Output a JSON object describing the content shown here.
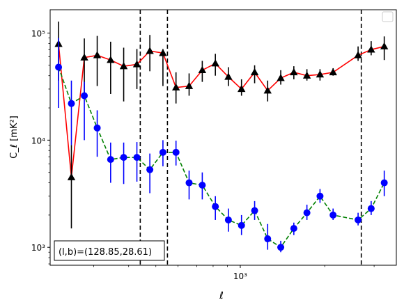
{
  "chart_data": {
    "type": "scatter",
    "xscale": "log",
    "yscale": "log",
    "xlim": [
      210,
      3600
    ],
    "ylim": [
      680,
      165000
    ],
    "xlabel": "ℓ",
    "ylabel": "C_ℓ [mK²]",
    "x_ticks": [
      {
        "value": 1000,
        "label": "10³"
      }
    ],
    "y_ticks": [
      {
        "value": 1000,
        "label": "10³"
      },
      {
        "value": 10000,
        "label": "10⁴"
      },
      {
        "value": 100000,
        "label": "10⁵"
      }
    ],
    "legend": {
      "position": "upper right",
      "entries": []
    },
    "annotation": "(l,b)=(128.85,28.61)",
    "vlines": [
      440,
      550,
      2700
    ],
    "series": [
      {
        "color": "#ff0000",
        "linestyle": "solid",
        "marker": "triangle",
        "marker_color": "#000000",
        "errorbar_color": "#000000",
        "points": [
          {
            "x": 225,
            "y": 79000,
            "lo": 36000,
            "hi": 128000
          },
          {
            "x": 250,
            "y": 4500,
            "lo": 1500,
            "hi": 9000
          },
          {
            "x": 278,
            "y": 59000,
            "lo": 27000,
            "hi": 89000
          },
          {
            "x": 309,
            "y": 62000,
            "lo": 32000,
            "hi": 94000
          },
          {
            "x": 345,
            "y": 56000,
            "lo": 27000,
            "hi": 83000
          },
          {
            "x": 384,
            "y": 49000,
            "lo": 23000,
            "hi": 73000
          },
          {
            "x": 428,
            "y": 51000,
            "lo": 30000,
            "hi": 71000
          },
          {
            "x": 476,
            "y": 68000,
            "lo": 44000,
            "hi": 96000
          },
          {
            "x": 530,
            "y": 65000,
            "lo": 32000,
            "hi": 71000
          },
          {
            "x": 590,
            "y": 31000,
            "lo": 22000,
            "hi": 43000
          },
          {
            "x": 657,
            "y": 32000,
            "lo": 26000,
            "hi": 42000
          },
          {
            "x": 732,
            "y": 45000,
            "lo": 35000,
            "hi": 55000
          },
          {
            "x": 815,
            "y": 52000,
            "lo": 40000,
            "hi": 64000
          },
          {
            "x": 907,
            "y": 39000,
            "lo": 32000,
            "hi": 48000
          },
          {
            "x": 1010,
            "y": 30000,
            "lo": 26000,
            "hi": 37000
          },
          {
            "x": 1125,
            "y": 43000,
            "lo": 34000,
            "hi": 50000
          },
          {
            "x": 1252,
            "y": 29000,
            "lo": 23000,
            "hi": 36000
          },
          {
            "x": 1394,
            "y": 38000,
            "lo": 33000,
            "hi": 45000
          },
          {
            "x": 1552,
            "y": 43000,
            "lo": 37000,
            "hi": 49000
          },
          {
            "x": 1728,
            "y": 40000,
            "lo": 36000,
            "hi": 46000
          },
          {
            "x": 1924,
            "y": 41000,
            "lo": 36000,
            "hi": 46000
          },
          {
            "x": 2142,
            "y": 43000,
            "lo": 40000,
            "hi": 47000
          },
          {
            "x": 2630,
            "y": 62000,
            "lo": 55000,
            "hi": 75000
          },
          {
            "x": 2928,
            "y": 70000,
            "lo": 62000,
            "hi": 84000
          },
          {
            "x": 3260,
            "y": 75000,
            "lo": 56000,
            "hi": 93000
          }
        ]
      },
      {
        "color": "#008000",
        "linestyle": "dashed",
        "marker": "circle",
        "marker_color": "#0000ff",
        "errorbar_color": "#0000ff",
        "points": [
          {
            "x": 225,
            "y": 48000,
            "lo": 20000,
            "hi": 90000
          },
          {
            "x": 250,
            "y": 22000,
            "lo": 9000,
            "hi": 36000
          },
          {
            "x": 278,
            "y": 26000,
            "lo": 10000,
            "hi": 35000
          },
          {
            "x": 309,
            "y": 13000,
            "lo": 7000,
            "hi": 19000
          },
          {
            "x": 345,
            "y": 6600,
            "lo": 4000,
            "hi": 9500
          },
          {
            "x": 384,
            "y": 6900,
            "lo": 3900,
            "hi": 9500
          },
          {
            "x": 428,
            "y": 6900,
            "lo": 4100,
            "hi": 9600
          },
          {
            "x": 476,
            "y": 5300,
            "lo": 3200,
            "hi": 7500
          },
          {
            "x": 530,
            "y": 7700,
            "lo": 5700,
            "hi": 10000
          },
          {
            "x": 590,
            "y": 7700,
            "lo": 5800,
            "hi": 9900
          },
          {
            "x": 657,
            "y": 4000,
            "lo": 2800,
            "hi": 5200
          },
          {
            "x": 732,
            "y": 3800,
            "lo": 2800,
            "hi": 5000
          },
          {
            "x": 815,
            "y": 2400,
            "lo": 1800,
            "hi": 3000
          },
          {
            "x": 907,
            "y": 1800,
            "lo": 1400,
            "hi": 2300
          },
          {
            "x": 1010,
            "y": 1600,
            "lo": 1300,
            "hi": 2000
          },
          {
            "x": 1125,
            "y": 2200,
            "lo": 1800,
            "hi": 2700
          },
          {
            "x": 1252,
            "y": 1200,
            "lo": 950,
            "hi": 1650
          },
          {
            "x": 1394,
            "y": 1000,
            "lo": 900,
            "hi": 1150
          },
          {
            "x": 1552,
            "y": 1500,
            "lo": 1300,
            "hi": 1700
          },
          {
            "x": 1728,
            "y": 2100,
            "lo": 1800,
            "hi": 2500
          },
          {
            "x": 1924,
            "y": 3000,
            "lo": 2600,
            "hi": 3500
          },
          {
            "x": 2142,
            "y": 2000,
            "lo": 1800,
            "hi": 2300
          },
          {
            "x": 2630,
            "y": 1800,
            "lo": 1600,
            "hi": 2100
          },
          {
            "x": 2928,
            "y": 2300,
            "lo": 2000,
            "hi": 2700
          },
          {
            "x": 3260,
            "y": 4000,
            "lo": 3000,
            "hi": 5200
          }
        ]
      }
    ]
  }
}
